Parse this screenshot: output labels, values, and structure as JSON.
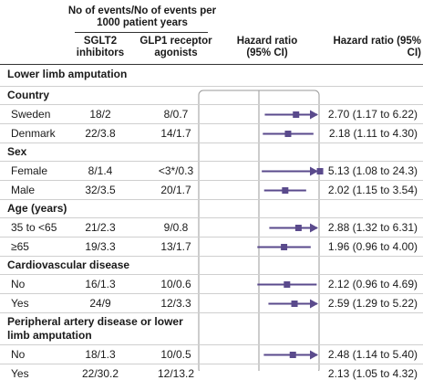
{
  "header": {
    "events_group": "No of events/No of events per 1000 patient years",
    "col_sglt2": "SGLT2 inhibitors",
    "col_glp1": "GLP1 receptor agonists",
    "col_hr_plot": "Hazard ratio (95% CI)",
    "col_hr_text": "Hazard ratio (95% CI)"
  },
  "title": "Lower limb amputation",
  "sections": [
    {
      "title": "Country",
      "rows": [
        {
          "label": "Sweden",
          "sglt2": "18/2",
          "glp1": "8/0.7",
          "ci_text": "2.70 (1.17 to 6.22)"
        },
        {
          "label": "Denmark",
          "sglt2": "22/3.8",
          "glp1": "14/1.7",
          "ci_text": "2.18 (1.11 to 4.30)"
        }
      ]
    },
    {
      "title": "Sex",
      "rows": [
        {
          "label": "Female",
          "sglt2": "8/1.4",
          "glp1": "<3*/0.3",
          "ci_text": "5.13 (1.08 to 24.3)"
        },
        {
          "label": "Male",
          "sglt2": "32/3.5",
          "glp1": "20/1.7",
          "ci_text": "2.02 (1.15 to 3.54)"
        }
      ]
    },
    {
      "title": "Age (years)",
      "rows": [
        {
          "label": "35 to <65",
          "sglt2": "21/2.3",
          "glp1": "9/0.8",
          "ci_text": "2.88 (1.32 to 6.31)"
        },
        {
          "label": "≥65",
          "sglt2": "19/3.3",
          "glp1": "13/1.7",
          "ci_text": "1.96 (0.96 to 4.00)"
        }
      ]
    },
    {
      "title": "Cardiovascular disease",
      "rows": [
        {
          "label": "No",
          "sglt2": "16/1.3",
          "glp1": "10/0.6",
          "ci_text": "2.12 (0.96 to 4.69)"
        },
        {
          "label": "Yes",
          "sglt2": "24/9",
          "glp1": "12/3.3",
          "ci_text": "2.59 (1.29 to 5.22)"
        }
      ]
    },
    {
      "title": "Peripheral artery disease or lower limb amputation",
      "title_lines": [
        "Peripheral artery disease or lower",
        "limb amputation"
      ],
      "rows": [
        {
          "label": "No",
          "sglt2": "18/1.3",
          "glp1": "10/0.5",
          "ci_text": "2.48 (1.14 to 5.40)"
        },
        {
          "label": "Yes",
          "sglt2": "22/30.2",
          "glp1": "12/13.2",
          "ci_text": "2.13 (1.05 to 4.32)"
        }
      ]
    }
  ],
  "chart_data": {
    "type": "forest",
    "x_scale": "log",
    "reference_line": 1,
    "marker_color": "#5a4a8c",
    "xlim": [
      0.2,
      5
    ],
    "rows": [
      {
        "label": "Sweden",
        "hr": 2.7,
        "lo": 1.17,
        "hi": 6.22
      },
      {
        "label": "Denmark",
        "hr": 2.18,
        "lo": 1.11,
        "hi": 4.3
      },
      {
        "label": "Female",
        "hr": 5.13,
        "lo": 1.08,
        "hi": 24.3
      },
      {
        "label": "Male",
        "hr": 2.02,
        "lo": 1.15,
        "hi": 3.54
      },
      {
        "label": "35 to <65",
        "hr": 2.88,
        "lo": 1.32,
        "hi": 6.31
      },
      {
        "label": "≥65",
        "hr": 1.96,
        "lo": 0.96,
        "hi": 4.0
      },
      {
        "label": "No",
        "hr": 2.12,
        "lo": 0.96,
        "hi": 4.69
      },
      {
        "label": "Yes",
        "hr": 2.59,
        "lo": 1.29,
        "hi": 5.22
      },
      {
        "label": "No",
        "hr": 2.48,
        "lo": 1.14,
        "hi": 5.4
      },
      {
        "label": "Yes",
        "hr": 2.13,
        "lo": 1.05,
        "hi": 4.32
      }
    ]
  }
}
